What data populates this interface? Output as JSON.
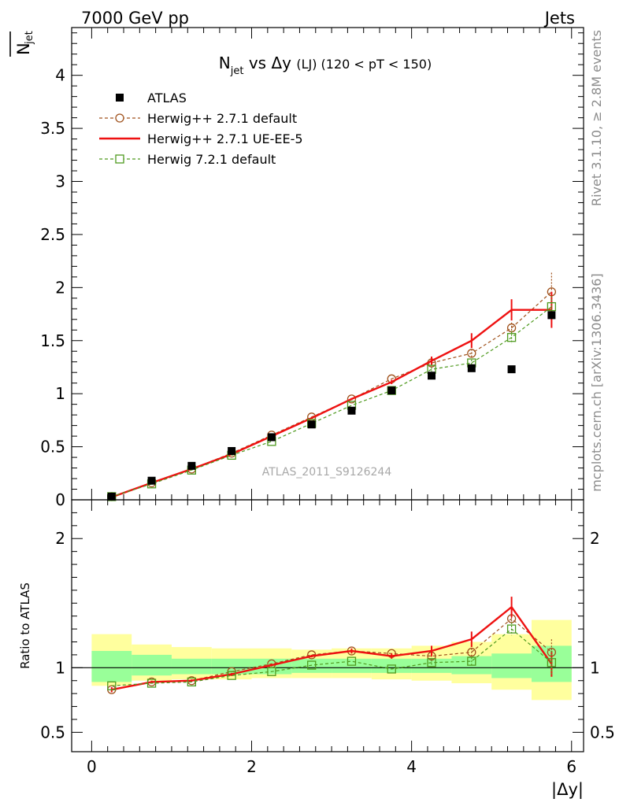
{
  "header": {
    "left": "7000 GeV pp",
    "right": "Jets"
  },
  "side_labels": {
    "rivet": "Rivet 3.1.10, ≥ 2.8M events",
    "mcplots": "mcplots.cern.ch [arXiv:1306.3436]"
  },
  "chart_data": [
    {
      "type": "scatter",
      "title_parts": {
        "n": "N",
        "sub": "jet",
        "mid": " vs Δy ",
        "small": "(LJ)",
        "tail": " (120 < pT < 150)"
      },
      "ylabel": {
        "main": "N",
        "sub": "jet"
      },
      "watermark": "ATLAS_2011_S9126244",
      "xlim": [
        -0.25,
        6.15
      ],
      "ylim": [
        0,
        4.45
      ],
      "yticks": [
        0,
        0.5,
        1,
        1.5,
        2,
        2.5,
        3,
        3.5,
        4
      ],
      "ytick_labels": [
        "0",
        "0.5",
        "1",
        "1.5",
        "2",
        "2.5",
        "3",
        "3.5",
        "4"
      ],
      "legend_position": "top-left",
      "series": [
        {
          "name": "ATLAS",
          "style": "data",
          "color": "#000000",
          "x": [
            0.25,
            0.75,
            1.25,
            1.75,
            2.25,
            2.75,
            3.25,
            3.75,
            4.25,
            4.75,
            5.25,
            5.75
          ],
          "y": [
            0.03,
            0.18,
            0.32,
            0.46,
            0.59,
            0.71,
            0.84,
            1.03,
            1.17,
            1.24,
            1.23,
            1.74
          ]
        },
        {
          "name": "Herwig++ 2.7.1 default",
          "style": "circle-dashed",
          "color": "#a0521d",
          "x": [
            0.25,
            0.75,
            1.25,
            1.75,
            2.25,
            2.75,
            3.25,
            3.75,
            4.25,
            4.75,
            5.25,
            5.75
          ],
          "y": [
            0.03,
            0.16,
            0.29,
            0.44,
            0.61,
            0.78,
            0.95,
            1.14,
            1.29,
            1.38,
            1.62,
            1.96
          ],
          "err": [
            0,
            0,
            0,
            0,
            0,
            0,
            0,
            0,
            0.03,
            0.04,
            0.05,
            0.18
          ]
        },
        {
          "name": "Herwig++ 2.7.1 UE-EE-5",
          "style": "solid",
          "color": "#ee1111",
          "x": [
            0.25,
            0.75,
            1.25,
            1.75,
            2.25,
            2.75,
            3.25,
            3.75,
            4.25,
            4.75,
            5.25,
            5.75
          ],
          "y": [
            0.025,
            0.16,
            0.29,
            0.43,
            0.6,
            0.77,
            0.95,
            1.11,
            1.31,
            1.5,
            1.79,
            1.79
          ],
          "err": [
            0,
            0,
            0,
            0,
            0.01,
            0.01,
            0.01,
            0.02,
            0.04,
            0.07,
            0.1,
            0.17
          ]
        },
        {
          "name": "Herwig 7.2.1 default",
          "style": "square-dashed",
          "color": "#4f9a1f",
          "x": [
            0.25,
            0.75,
            1.25,
            1.75,
            2.25,
            2.75,
            3.25,
            3.75,
            4.25,
            4.75,
            5.25,
            5.75
          ],
          "y": [
            0.03,
            0.15,
            0.28,
            0.42,
            0.55,
            0.72,
            0.89,
            1.03,
            1.23,
            1.29,
            1.53,
            1.82
          ],
          "err": [
            0,
            0,
            0,
            0,
            0,
            0,
            0,
            0,
            0.02,
            0.03,
            0.06,
            0.1
          ]
        }
      ]
    },
    {
      "type": "scatter",
      "ylabel": "Ratio to ATLAS",
      "xlabel": "|Δy|",
      "xlim": [
        -0.25,
        6.15
      ],
      "ylim": [
        0.35,
        2.3
      ],
      "xticks": [
        0,
        2,
        4,
        6
      ],
      "xtick_labels": [
        "0",
        "2",
        "4",
        "6"
      ],
      "yticks": [
        0.5,
        1,
        2
      ],
      "ytick_labels": [
        "0.5",
        "1",
        "2"
      ],
      "uncertainty_bands": {
        "x_edges": [
          0,
          0.5,
          1,
          1.5,
          2,
          2.5,
          3,
          3.5,
          4,
          4.5,
          5,
          5.5,
          6
        ],
        "inner_low": [
          0.89,
          0.94,
          0.95,
          0.95,
          0.95,
          0.96,
          0.96,
          0.96,
          0.96,
          0.95,
          0.92,
          0.89
        ],
        "inner_high": [
          1.13,
          1.1,
          1.07,
          1.07,
          1.07,
          1.07,
          1.07,
          1.07,
          1.07,
          1.09,
          1.11,
          1.17
        ],
        "outer_low": [
          0.86,
          0.9,
          0.91,
          0.91,
          0.92,
          0.92,
          0.92,
          0.91,
          0.9,
          0.88,
          0.83,
          0.75
        ],
        "outer_high": [
          1.26,
          1.18,
          1.16,
          1.15,
          1.15,
          1.14,
          1.15,
          1.15,
          1.17,
          1.2,
          1.26,
          1.37
        ]
      },
      "series": [
        {
          "name": "Herwig++ 2.7.1 default",
          "style": "circle-dashed",
          "color": "#a0521d",
          "x": [
            0.25,
            0.75,
            1.25,
            1.75,
            2.25,
            2.75,
            3.25,
            3.75,
            4.25,
            4.75,
            5.25,
            5.75
          ],
          "y": [
            0.83,
            0.89,
            0.9,
            0.97,
            1.03,
            1.1,
            1.13,
            1.11,
            1.09,
            1.12,
            1.38,
            1.12
          ],
          "err": [
            0,
            0,
            0,
            0,
            0,
            0,
            0,
            0,
            0.03,
            0.03,
            0.04,
            0.1
          ]
        },
        {
          "name": "Herwig++ 2.7.1 UE-EE-5",
          "style": "solid",
          "color": "#ee1111",
          "x": [
            0.25,
            0.75,
            1.25,
            1.75,
            2.25,
            2.75,
            3.25,
            3.75,
            4.25,
            4.75,
            5.25,
            5.75
          ],
          "y": [
            0.83,
            0.89,
            0.9,
            0.95,
            1.02,
            1.09,
            1.13,
            1.09,
            1.13,
            1.22,
            1.47,
            1.03
          ],
          "err": [
            0.02,
            0.01,
            0.01,
            0.01,
            0.01,
            0.01,
            0.02,
            0.02,
            0.04,
            0.06,
            0.08,
            0.1
          ]
        },
        {
          "name": "Herwig 7.2.1 default",
          "style": "square-dashed",
          "color": "#4f9a1f",
          "x": [
            0.25,
            0.75,
            1.25,
            1.75,
            2.25,
            2.75,
            3.25,
            3.75,
            4.25,
            4.75,
            5.25,
            5.75
          ],
          "y": [
            0.86,
            0.88,
            0.89,
            0.94,
            0.97,
            1.02,
            1.05,
            0.99,
            1.04,
            1.05,
            1.3,
            1.04
          ],
          "err": [
            0,
            0,
            0,
            0,
            0,
            0,
            0,
            0,
            0.02,
            0.03,
            0.05,
            0.09
          ]
        }
      ]
    }
  ]
}
